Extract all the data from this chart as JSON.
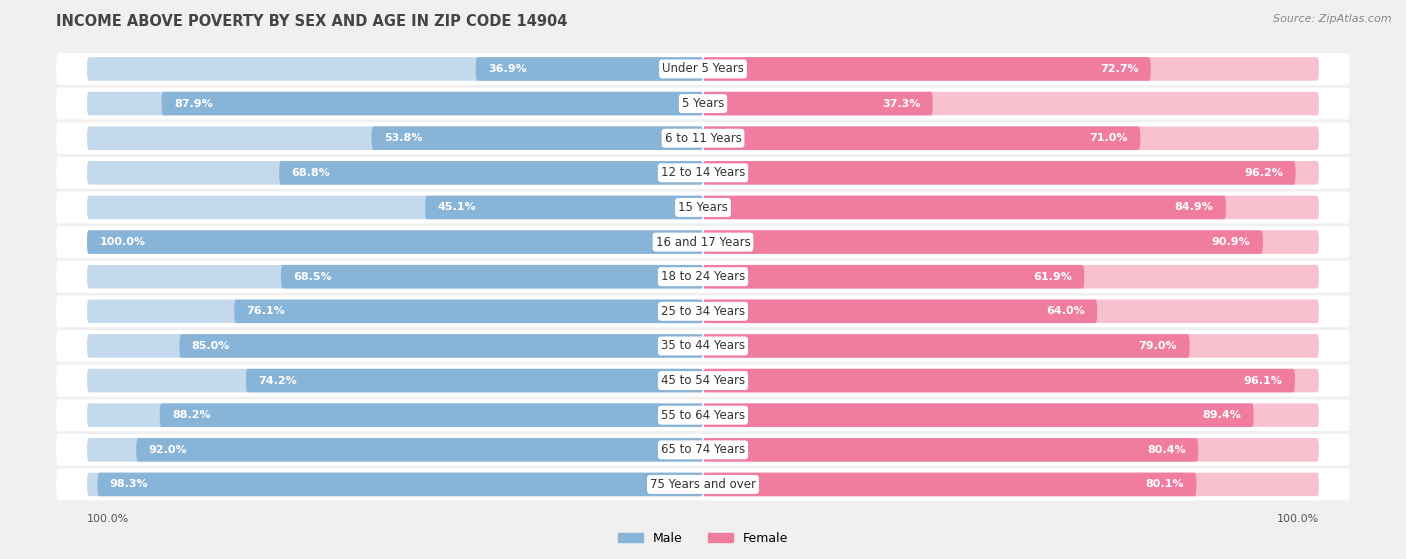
{
  "title": "INCOME ABOVE POVERTY BY SEX AND AGE IN ZIP CODE 14904",
  "source": "Source: ZipAtlas.com",
  "categories": [
    "Under 5 Years",
    "5 Years",
    "6 to 11 Years",
    "12 to 14 Years",
    "15 Years",
    "16 and 17 Years",
    "18 to 24 Years",
    "25 to 34 Years",
    "35 to 44 Years",
    "45 to 54 Years",
    "55 to 64 Years",
    "65 to 74 Years",
    "75 Years and over"
  ],
  "male_values": [
    36.9,
    87.9,
    53.8,
    68.8,
    45.1,
    100.0,
    68.5,
    76.1,
    85.0,
    74.2,
    88.2,
    92.0,
    98.3
  ],
  "female_values": [
    72.7,
    37.3,
    71.0,
    96.2,
    84.9,
    90.9,
    61.9,
    64.0,
    79.0,
    96.1,
    89.4,
    80.4,
    80.1
  ],
  "male_color": "#88b4d8",
  "female_color": "#f07ca0",
  "male_color_light": "#c5d9ec",
  "female_color_light": "#f9c0d0",
  "male_label": "Male",
  "female_label": "Female",
  "bg_color": "#f0f0f0",
  "row_bg_color": "#e2e2e2",
  "row_alt_bg": "#ffffff",
  "title_fontsize": 10.5,
  "source_fontsize": 8,
  "label_fontsize": 8,
  "cat_fontsize": 8.5,
  "axis_max": 100.0,
  "bar_height": 0.68
}
